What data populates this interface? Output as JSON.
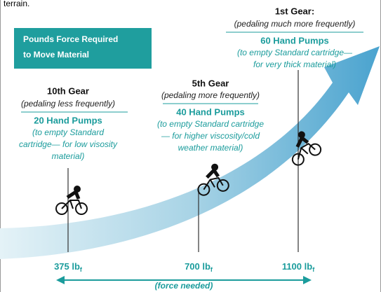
{
  "intro_fragment": "terrain.",
  "callout": {
    "lines": [
      "Pounds Force Required",
      "to Move Material"
    ]
  },
  "gears": [
    {
      "name": "10th Gear",
      "pedaling": "(pedaling less frequently)",
      "pumps": "20 Hand Pumps",
      "note": [
        "(to empty Standard",
        "cartridge— for low visosity",
        "material)"
      ]
    },
    {
      "name": "5th Gear",
      "pedaling": "(pedaling more frequently)",
      "pumps": "40 Hand Pumps",
      "note": [
        "(to empty Standard cartridge",
        "— for higher viscosity/cold",
        "weather material)"
      ]
    },
    {
      "name": "1st Gear:",
      "pedaling": "(pedaling much more frequently)",
      "pumps": "60 Hand Pumps",
      "note": [
        "(to empty Standard cartridge—",
        "for very thick material)"
      ]
    }
  ],
  "forces": [
    {
      "amount": "375 lb",
      "subscript": "f"
    },
    {
      "amount": "700 lb",
      "subscript": "f"
    },
    {
      "amount": "1100 lb",
      "subscript": "f"
    }
  ],
  "axis_label": "(force needed)"
}
